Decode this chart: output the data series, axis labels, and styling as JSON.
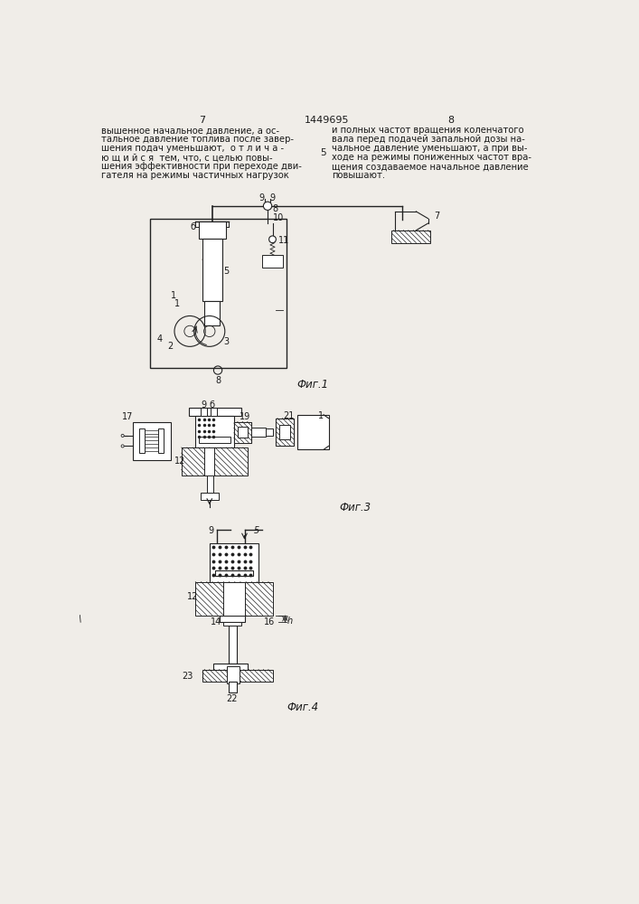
{
  "page_number_left": "7",
  "page_number_center": "1449695",
  "page_number_right": "8",
  "background_color": "#f0ede8",
  "text_color": "#1a1a1a",
  "line_color": "#222222",
  "left_column_text": [
    "вышенное начальное давление, а ос-",
    "тальное давление топлива после завер-",
    "шения подач уменьшают,  о т л и ч а -",
    "ю щ и й с я  тем, что, с целью повы-",
    "шения эффективности при переходе дви-",
    "гателя на режимы частичных нагрузок"
  ],
  "right_column_text": [
    "и полных частот вращения коленчатого",
    "вала перед подачей запальной дозы на-",
    "чальное давление уменьшают, а при вы-",
    "ходе на режимы пониженных частот вра-",
    "щения создаваемое начальное давление",
    "повышают."
  ],
  "fig1_caption": "Фиг.1",
  "fig3_caption": "Фиг.3",
  "fig4_caption": "Фиг.4"
}
